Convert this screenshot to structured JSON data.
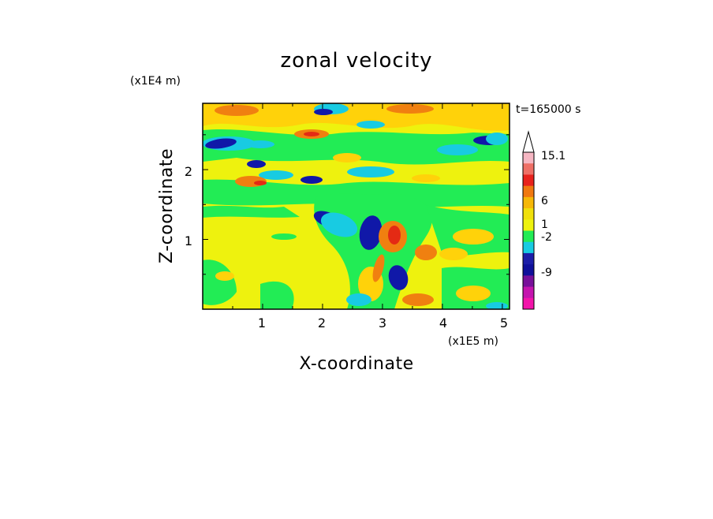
{
  "chart_data": {
    "type": "heatmap",
    "title": "zonal velocity",
    "xlabel": "X-coordinate",
    "ylabel": "Z-coordinate",
    "x_unit": "(x1E5 m)",
    "y_unit": "(x1E4 m)",
    "time_label": "t=165000 s",
    "x_ticks": [
      "1",
      "2",
      "3",
      "4",
      "5"
    ],
    "y_ticks": [
      "1",
      "2"
    ],
    "xlim": [
      0,
      5.12
    ],
    "ylim": [
      0,
      2.95
    ],
    "colorbar": {
      "labels": [
        "15.1",
        "6",
        "1",
        "-2",
        "-9"
      ],
      "levels": [
        15.1,
        6,
        1,
        -2,
        -9
      ],
      "colors": [
        "#f5b6c2",
        "#ee6f66",
        "#e8221c",
        "#f07810",
        "#f6b808",
        "#f0e00c",
        "#eef20e",
        "#22ec55",
        "#18cbe2",
        "#1c1ea8",
        "#10109a",
        "#78109a",
        "#c414ae",
        "#f214aa"
      ]
    },
    "field_colors": {
      "background": "#eef20e",
      "positive_weak": "#ffd20a",
      "positive_mid": "#f08010",
      "positive_strong": "#e42a14",
      "near_zero": "#22ec55",
      "negative_weak": "#18cbe2",
      "negative_strong": "#1018a8"
    }
  }
}
